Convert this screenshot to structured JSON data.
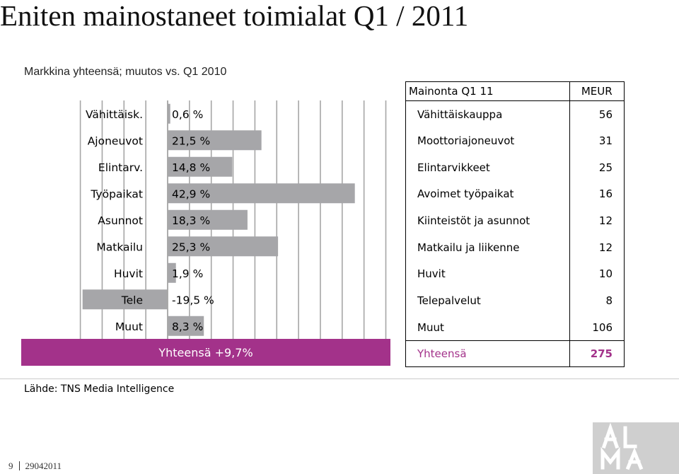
{
  "page": {
    "title": "Eniten mainostaneet toimialat Q1 / 2011",
    "subtitle": "Markkina yhteensä; muutos vs. Q1 2010",
    "source": "Lähde: TNS Media Intelligence",
    "page_number": "9",
    "date": "29042011",
    "logo_text": "ALMA"
  },
  "chart_data": {
    "type": "bar",
    "orientation": "horizontal",
    "categories": [
      "Vähittäisk.",
      "Ajoneuvot",
      "Elintarv.",
      "Työpaikat",
      "Asunnot",
      "Matkailu",
      "Huvit",
      "Tele",
      "Muut"
    ],
    "values": [
      0.6,
      21.5,
      14.8,
      42.9,
      18.3,
      25.3,
      1.9,
      -19.5,
      8.3
    ],
    "value_labels": [
      "0,6 %",
      "21,5 %",
      "14,8 %",
      "42,9 %",
      "18,3 %",
      "25,3 %",
      "1,9 %",
      "-19,5 %",
      "8,3 %"
    ],
    "total_label": "Yhteensä +9,7%",
    "bar_color": "#a6a6a9",
    "grid": true,
    "xlim": [
      -25,
      70
    ],
    "grid_step": 5
  },
  "table": {
    "header_label": "Mainonta Q1 11",
    "header_unit": "MEUR",
    "rows": [
      {
        "label": "Vähittäiskauppa",
        "value": "56"
      },
      {
        "label": "Moottoriajoneuvot",
        "value": "31"
      },
      {
        "label": "Elintarvikkeet",
        "value": "25"
      },
      {
        "label": "Avoimet työpaikat",
        "value": "16"
      },
      {
        "label": "Kiinteistöt ja asunnot",
        "value": "12"
      },
      {
        "label": "Matkailu ja liikenne",
        "value": "12"
      },
      {
        "label": "Huvit",
        "value": "10"
      },
      {
        "label": "Telepalvelut",
        "value": "8"
      },
      {
        "label": "Muut",
        "value": "106"
      }
    ],
    "total_label": "Yhteensä",
    "total_value": "275"
  },
  "colors": {
    "accent": "#a3328a",
    "bar": "#a6a6a9",
    "logo_bg": "#cfcfcf"
  }
}
